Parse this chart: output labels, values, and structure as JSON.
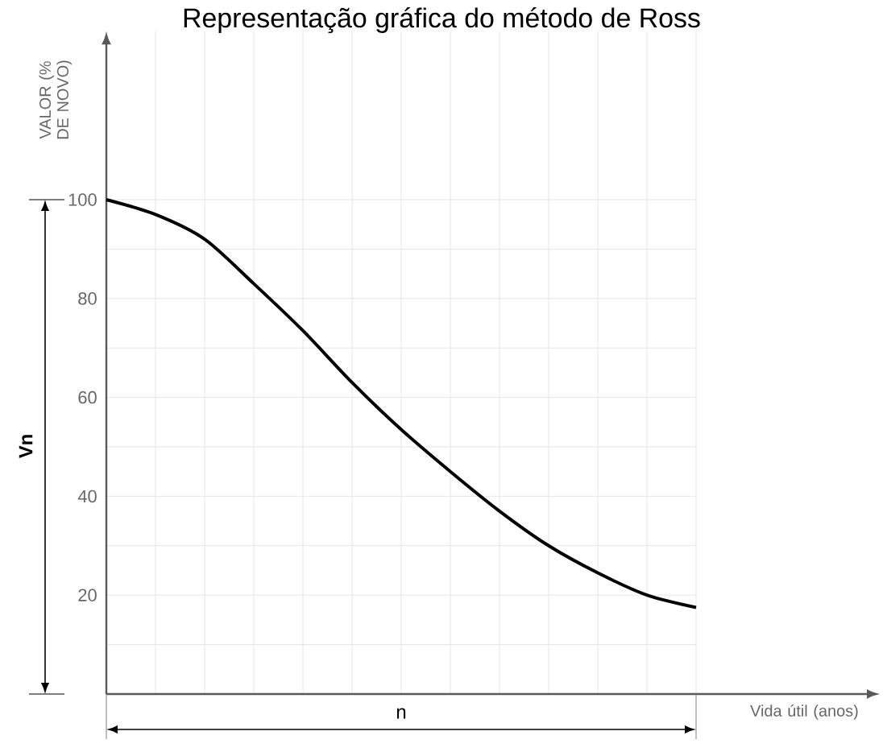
{
  "chart_data": {
    "type": "line",
    "title": "Representação gráfica do método de Ross",
    "ylabel": "VALOR (% DE NOVO)",
    "xlabel": "Vida útil (anos)",
    "annotations": [
      "Vn",
      "n"
    ],
    "categories": [
      null,
      null,
      null,
      null,
      null,
      null,
      null,
      null,
      null,
      null,
      null,
      null,
      null
    ],
    "values": [
      100,
      97,
      92,
      83,
      73.5,
      63,
      53.5,
      45,
      37,
      30,
      24.5,
      20,
      17.5
    ],
    "color": "#000000",
    "ylim": [
      0,
      134
    ],
    "yticks": [
      {
        "value": 10,
        "label": null
      },
      20,
      {
        "value": 30,
        "label": null
      },
      40,
      {
        "value": 50,
        "label": null
      },
      60,
      {
        "value": 70,
        "label": null
      },
      80,
      {
        "value": 90,
        "label": null
      },
      100
    ],
    "grid": true,
    "marker": "none",
    "line_style": "solid"
  }
}
